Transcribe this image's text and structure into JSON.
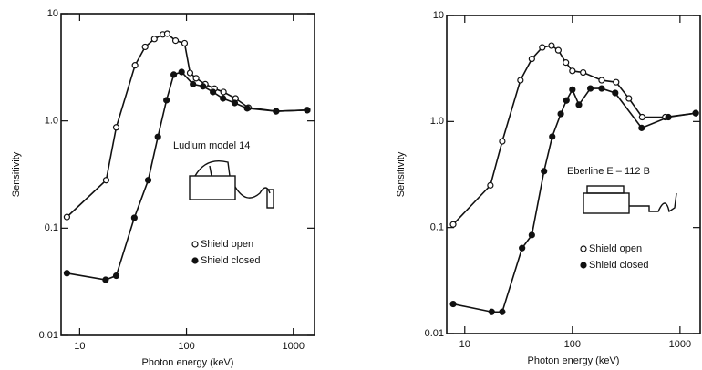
{
  "chart_data": [
    {
      "type": "line",
      "x_label": "Photon energy (keV)",
      "y_label": "Sensitivity",
      "annotation": "Ludlum model 14",
      "log_x": true,
      "log_y": true,
      "xlim": [
        6.7,
        1580
      ],
      "ylim": [
        0.01,
        10
      ],
      "xticks": [
        10,
        100,
        1000
      ],
      "yticks": [
        {
          "value": 0.01,
          "label": "0.01"
        },
        {
          "value": 0.1,
          "label": "0.1"
        },
        {
          "value": 1,
          "label": "1.0"
        },
        {
          "value": 10,
          "label": "10"
        }
      ],
      "series": [
        {
          "name": "Shield open",
          "color": "#111111",
          "marker": "open",
          "x": [
            7.6,
            17.7,
            22,
            33,
            41,
            50,
            60,
            66,
            79,
            96,
            108,
            123,
            150,
            183,
            222,
            288,
            380,
            690,
            1350
          ],
          "values": [
            0.127,
            0.28,
            0.87,
            3.3,
            4.9,
            5.8,
            6.4,
            6.5,
            5.6,
            5.3,
            2.8,
            2.5,
            2.2,
            2.0,
            1.86,
            1.62,
            1.33,
            1.23,
            1.26
          ]
        },
        {
          "name": "Shield closed",
          "color": "#111111",
          "marker": "filled",
          "x": [
            7.6,
            17.5,
            22,
            32.5,
            43.8,
            54,
            65,
            76,
            90,
            115,
            143,
            177,
            220,
            283,
            370,
            690,
            1350
          ],
          "values": [
            0.038,
            0.033,
            0.036,
            0.125,
            0.28,
            0.71,
            1.56,
            2.7,
            2.86,
            2.2,
            2.1,
            1.86,
            1.62,
            1.47,
            1.31,
            1.23,
            1.26
          ]
        }
      ]
    },
    {
      "type": "line",
      "x_label": "Photon energy (keV)",
      "y_label": "Sensitivity",
      "annotation": "Eberline E – 112 B",
      "log_x": true,
      "log_y": true,
      "xlim": [
        6.8,
        1540
      ],
      "ylim": [
        0.01,
        10
      ],
      "xticks": [
        10,
        100,
        1000
      ],
      "yticks": [
        {
          "value": 0.01,
          "label": "0.01"
        },
        {
          "value": 0.1,
          "label": "0.1"
        },
        {
          "value": 1,
          "label": "1.0"
        },
        {
          "value": 10,
          "label": "10"
        }
      ],
      "series": [
        {
          "name": "Shield open",
          "color": "#111111",
          "marker": "open",
          "x": [
            7.8,
            17.3,
            22.3,
            32.9,
            42,
            52.5,
            64,
            74,
            87,
            100,
            126,
            187,
            255,
            335,
            445,
            730,
            1400
          ],
          "values": [
            0.107,
            0.25,
            0.65,
            2.45,
            3.9,
            5.0,
            5.2,
            4.7,
            3.6,
            3.0,
            2.9,
            2.45,
            2.35,
            1.65,
            1.1,
            1.1,
            1.2
          ]
        },
        {
          "name": "Shield closed",
          "color": "#111111",
          "marker": "filled",
          "x": [
            7.8,
            17.8,
            22.3,
            34.1,
            42,
            54.5,
            65,
            78,
            88,
            100,
            115,
            147,
            187,
            250,
            440,
            780,
            1400
          ],
          "values": [
            0.019,
            0.016,
            0.016,
            0.064,
            0.085,
            0.34,
            0.72,
            1.18,
            1.58,
            2.0,
            1.44,
            2.05,
            2.05,
            1.86,
            0.87,
            1.1,
            1.2
          ]
        }
      ]
    }
  ]
}
